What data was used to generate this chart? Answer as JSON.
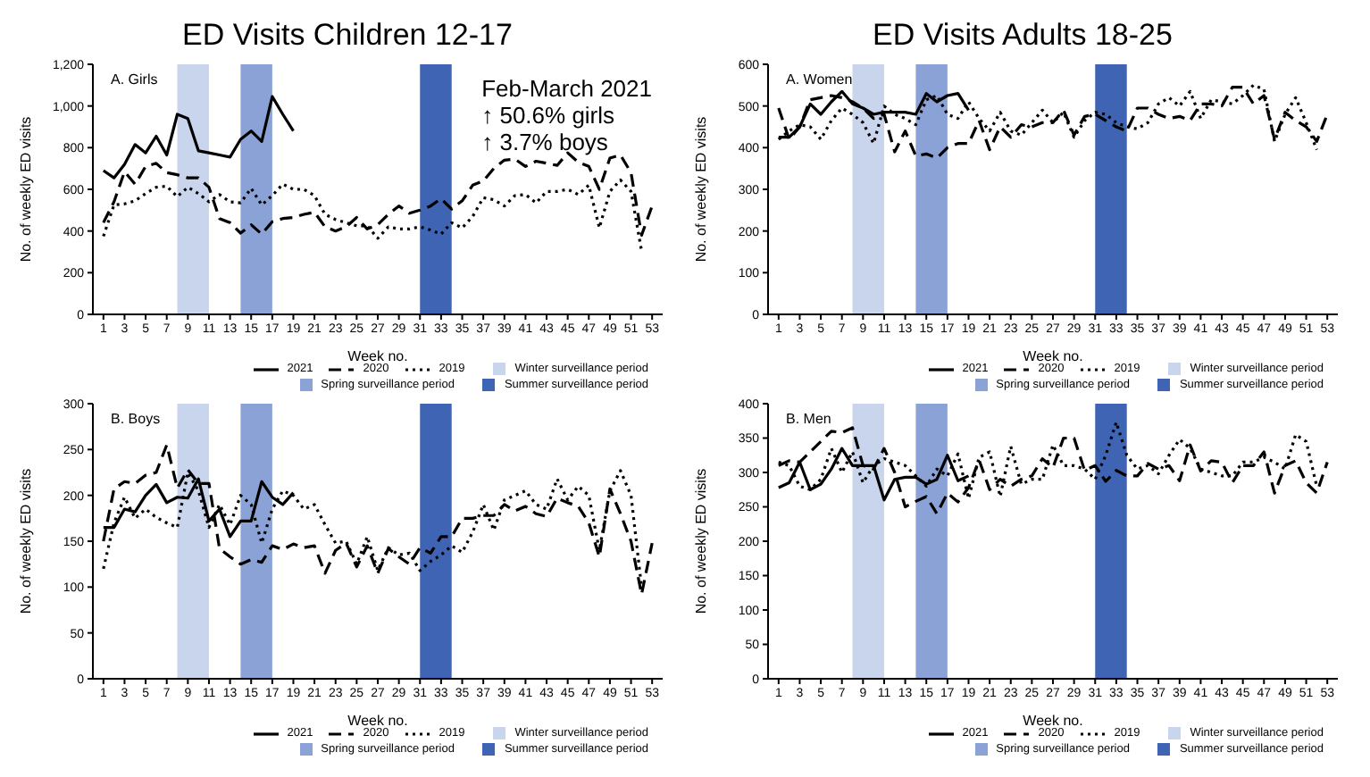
{
  "chart_data": [
    {
      "type": "line",
      "title": "ED Visits Children 12-17",
      "subtitle": "A. Girls",
      "xlabel": "Week no.",
      "ylabel": "No. of weekly ED visits",
      "annotations": [
        "Feb-March 2021\n↑ 50.6% girls\n↑ 3.7% boys"
      ],
      "x": [
        1,
        2,
        3,
        4,
        5,
        6,
        7,
        8,
        9,
        10,
        11,
        12,
        13,
        14,
        15,
        16,
        17,
        18,
        19,
        20,
        21,
        22,
        23,
        24,
        25,
        26,
        27,
        28,
        29,
        30,
        31,
        32,
        33,
        34,
        35,
        36,
        37,
        38,
        39,
        40,
        41,
        42,
        43,
        44,
        45,
        46,
        47,
        48,
        49,
        50,
        51,
        52,
        53
      ],
      "xlim": [
        0,
        54
      ],
      "xticks": [
        1,
        3,
        5,
        7,
        9,
        11,
        13,
        15,
        17,
        19,
        21,
        23,
        25,
        27,
        29,
        31,
        33,
        35,
        37,
        39,
        41,
        43,
        45,
        47,
        49,
        51,
        53
      ],
      "ylim": [
        0,
        1200
      ],
      "yticks": [
        0,
        200,
        400,
        600,
        800,
        {
          "value": 1000,
          "label": "1,000"
        },
        {
          "value": 1200,
          "label": "1,200"
        }
      ],
      "series": [
        {
          "name": "2021",
          "color": "#000000",
          "line_style": "solid",
          "values": [
            690,
            655,
            720,
            815,
            775,
            855,
            765,
            960,
            940,
            785,
            775,
            765,
            755,
            840,
            880,
            830,
            1045,
            960,
            880,
            null,
            null,
            null,
            null,
            null,
            null,
            null,
            null,
            null,
            null,
            null,
            null,
            null,
            null,
            null,
            null,
            null,
            null,
            null,
            null,
            null,
            null,
            null,
            null,
            null,
            null,
            null,
            null,
            null,
            null,
            null,
            null,
            null,
            null
          ]
        },
        {
          "name": "2020",
          "color": "#000000",
          "line_style": "dashed",
          "values": [
            440,
            540,
            685,
            625,
            710,
            725,
            680,
            670,
            655,
            655,
            610,
            460,
            440,
            390,
            430,
            385,
            445,
            460,
            465,
            480,
            490,
            420,
            400,
            420,
            465,
            410,
            430,
            480,
            520,
            485,
            500,
            520,
            555,
            505,
            545,
            620,
            640,
            700,
            740,
            745,
            710,
            735,
            725,
            715,
            775,
            730,
            710,
            600,
            750,
            765,
            680,
            380,
            520
          ]
        },
        {
          "name": "2019",
          "color": "#000000",
          "line_style": "dotted",
          "values": [
            375,
            525,
            530,
            545,
            580,
            610,
            615,
            565,
            610,
            580,
            540,
            575,
            540,
            535,
            605,
            525,
            570,
            625,
            600,
            600,
            570,
            480,
            455,
            440,
            425,
            425,
            365,
            420,
            410,
            410,
            420,
            405,
            385,
            440,
            415,
            470,
            560,
            550,
            520,
            570,
            575,
            535,
            590,
            590,
            600,
            575,
            620,
            415,
            590,
            645,
            590,
            305,
            null
          ]
        }
      ],
      "bands": [
        {
          "axis": "x",
          "from": 8,
          "to": 11,
          "label": "Winter surveillance period",
          "color": "#c9d5ec"
        },
        {
          "axis": "x",
          "from": 14,
          "to": 17,
          "label": "Spring surveillance period",
          "color": "#8aa2d6"
        },
        {
          "axis": "x",
          "from": 31,
          "to": 34,
          "label": "Summer surveillance period",
          "color": "#4064b4"
        }
      ],
      "legend": "bottom right"
    },
    {
      "type": "line",
      "title": "ED Visits Adults 18-25",
      "subtitle": "A. Women",
      "xlabel": "Week no.",
      "ylabel": "No. of weekly ED visits",
      "x": [
        1,
        2,
        3,
        4,
        5,
        6,
        7,
        8,
        9,
        10,
        11,
        12,
        13,
        14,
        15,
        16,
        17,
        18,
        19,
        20,
        21,
        22,
        23,
        24,
        25,
        26,
        27,
        28,
        29,
        30,
        31,
        32,
        33,
        34,
        35,
        36,
        37,
        38,
        39,
        40,
        41,
        42,
        43,
        44,
        45,
        46,
        47,
        48,
        49,
        50,
        51,
        52,
        53
      ],
      "xlim": [
        0,
        54
      ],
      "xticks": [
        1,
        3,
        5,
        7,
        9,
        11,
        13,
        15,
        17,
        19,
        21,
        23,
        25,
        27,
        29,
        31,
        33,
        35,
        37,
        39,
        41,
        43,
        45,
        47,
        49,
        51,
        53
      ],
      "ylim": [
        0,
        600
      ],
      "yticks": [
        0,
        100,
        200,
        300,
        400,
        500,
        600
      ],
      "series": [
        {
          "name": "2021",
          "color": "#000000",
          "line_style": "solid",
          "values": [
            425,
            425,
            450,
            505,
            480,
            510,
            535,
            505,
            495,
            480,
            485,
            485,
            485,
            480,
            530,
            510,
            525,
            530,
            490,
            null,
            null,
            null,
            null,
            null,
            null,
            null,
            null,
            null,
            null,
            null,
            null,
            null,
            null,
            null,
            null,
            null,
            null,
            null,
            null,
            null,
            null,
            null,
            null,
            null,
            null,
            null,
            null,
            null,
            null,
            null,
            null,
            null,
            null
          ]
        },
        {
          "name": "2020",
          "color": "#000000",
          "line_style": "dashed",
          "values": [
            495,
            420,
            450,
            515,
            520,
            525,
            520,
            510,
            495,
            470,
            480,
            390,
            440,
            380,
            385,
            375,
            400,
            410,
            410,
            465,
            395,
            450,
            425,
            455,
            450,
            460,
            460,
            490,
            430,
            475,
            480,
            465,
            450,
            440,
            495,
            495,
            480,
            470,
            475,
            465,
            505,
            505,
            500,
            545,
            545,
            505,
            525,
            420,
            485,
            465,
            450,
            415,
            480
          ]
        },
        {
          "name": "2019",
          "color": "#000000",
          "line_style": "dotted",
          "values": [
            420,
            440,
            455,
            450,
            420,
            465,
            495,
            480,
            460,
            410,
            500,
            480,
            470,
            455,
            515,
            525,
            480,
            470,
            510,
            470,
            440,
            485,
            440,
            430,
            460,
            490,
            460,
            485,
            425,
            465,
            485,
            480,
            460,
            450,
            445,
            460,
            505,
            520,
            500,
            535,
            470,
            515,
            510,
            505,
            525,
            550,
            540,
            415,
            480,
            520,
            460,
            395,
            null
          ]
        }
      ],
      "bands": [
        {
          "axis": "x",
          "from": 8,
          "to": 11,
          "label": "Winter surveillance period",
          "color": "#c9d5ec"
        },
        {
          "axis": "x",
          "from": 14,
          "to": 17,
          "label": "Spring surveillance period",
          "color": "#8aa2d6"
        },
        {
          "axis": "x",
          "from": 31,
          "to": 34,
          "label": "Summer surveillance period",
          "color": "#4064b4"
        }
      ],
      "legend": "bottom right"
    },
    {
      "type": "line",
      "subtitle": "B. Boys",
      "xlabel": "Week no.",
      "ylabel": "No. of weekly ED visits",
      "x": [
        1,
        2,
        3,
        4,
        5,
        6,
        7,
        8,
        9,
        10,
        11,
        12,
        13,
        14,
        15,
        16,
        17,
        18,
        19,
        20,
        21,
        22,
        23,
        24,
        25,
        26,
        27,
        28,
        29,
        30,
        31,
        32,
        33,
        34,
        35,
        36,
        37,
        38,
        39,
        40,
        41,
        42,
        43,
        44,
        45,
        46,
        47,
        48,
        49,
        50,
        51,
        52,
        53
      ],
      "xlim": [
        0,
        54
      ],
      "xticks": [
        1,
        3,
        5,
        7,
        9,
        11,
        13,
        15,
        17,
        19,
        21,
        23,
        25,
        27,
        29,
        31,
        33,
        35,
        37,
        39,
        41,
        43,
        45,
        47,
        49,
        51,
        53
      ],
      "ylim": [
        0,
        300
      ],
      "yticks": [
        0,
        50,
        100,
        150,
        200,
        250,
        300
      ],
      "series": [
        {
          "name": "2021",
          "color": "#000000",
          "line_style": "solid",
          "values": [
            165,
            165,
            185,
            182,
            200,
            212,
            192,
            198,
            197,
            218,
            172,
            185,
            155,
            172,
            172,
            215,
            198,
            190,
            203,
            null,
            null,
            null,
            null,
            null,
            null,
            null,
            null,
            null,
            null,
            null,
            null,
            null,
            null,
            null,
            null,
            null,
            null,
            null,
            null,
            null,
            null,
            null,
            null,
            null,
            null,
            null,
            null,
            null,
            null,
            null,
            null,
            null,
            null
          ]
        },
        {
          "name": "2020",
          "color": "#000000",
          "line_style": "dashed",
          "values": [
            150,
            207,
            215,
            213,
            222,
            225,
            255,
            208,
            228,
            213,
            213,
            142,
            133,
            125,
            130,
            127,
            145,
            141,
            147,
            143,
            145,
            115,
            140,
            148,
            122,
            145,
            115,
            142,
            133,
            125,
            143,
            137,
            155,
            155,
            175,
            175,
            178,
            178,
            190,
            183,
            188,
            180,
            177,
            197,
            192,
            188,
            170,
            133,
            207,
            180,
            150,
            92,
            148
          ]
        },
        {
          "name": "2019",
          "color": "#000000",
          "line_style": "dotted",
          "values": [
            120,
            170,
            198,
            175,
            185,
            176,
            170,
            165,
            225,
            205,
            165,
            190,
            168,
            200,
            190,
            148,
            185,
            205,
            200,
            185,
            190,
            168,
            148,
            150,
            125,
            155,
            118,
            143,
            135,
            137,
            118,
            128,
            135,
            145,
            138,
            160,
            190,
            162,
            195,
            200,
            205,
            190,
            185,
            218,
            195,
            210,
            200,
            140,
            205,
            227,
            200,
            100,
            null
          ]
        }
      ],
      "bands": [
        {
          "axis": "x",
          "from": 8,
          "to": 11,
          "label": "Winter surveillance period",
          "color": "#c9d5ec"
        },
        {
          "axis": "x",
          "from": 14,
          "to": 17,
          "label": "Spring surveillance period",
          "color": "#8aa2d6"
        },
        {
          "axis": "x",
          "from": 31,
          "to": 34,
          "label": "Summer surveillance period",
          "color": "#4064b4"
        }
      ],
      "legend": "bottom right"
    },
    {
      "type": "line",
      "subtitle": "B. Men",
      "xlabel": "Week no.",
      "ylabel": "No. of weekly ED visits",
      "x": [
        1,
        2,
        3,
        4,
        5,
        6,
        7,
        8,
        9,
        10,
        11,
        12,
        13,
        14,
        15,
        16,
        17,
        18,
        19,
        20,
        21,
        22,
        23,
        24,
        25,
        26,
        27,
        28,
        29,
        30,
        31,
        32,
        33,
        34,
        35,
        36,
        37,
        38,
        39,
        40,
        41,
        42,
        43,
        44,
        45,
        46,
        47,
        48,
        49,
        50,
        51,
        52,
        53
      ],
      "xlim": [
        0,
        54
      ],
      "xticks": [
        1,
        3,
        5,
        7,
        9,
        11,
        13,
        15,
        17,
        19,
        21,
        23,
        25,
        27,
        29,
        31,
        33,
        35,
        37,
        39,
        41,
        43,
        45,
        47,
        49,
        51,
        53
      ],
      "ylim": [
        0,
        400
      ],
      "yticks": [
        0,
        50,
        100,
        150,
        200,
        250,
        300,
        350,
        400
      ],
      "series": [
        {
          "name": "2021",
          "color": "#000000",
          "line_style": "solid",
          "values": [
            278,
            285,
            315,
            275,
            283,
            305,
            335,
            310,
            310,
            310,
            260,
            290,
            293,
            293,
            283,
            290,
            325,
            288,
            295,
            null,
            null,
            null,
            null,
            null,
            null,
            null,
            null,
            null,
            null,
            null,
            null,
            null,
            null,
            null,
            null,
            null,
            null,
            null,
            null,
            null,
            null,
            null,
            null,
            null,
            null,
            null,
            null,
            null,
            null,
            null,
            null,
            null,
            null
          ]
        },
        {
          "name": "2020",
          "color": "#000000",
          "line_style": "dashed",
          "values": [
            310,
            317,
            315,
            330,
            345,
            360,
            358,
            365,
            310,
            305,
            335,
            300,
            250,
            258,
            265,
            240,
            270,
            257,
            278,
            318,
            275,
            290,
            280,
            290,
            295,
            320,
            307,
            350,
            350,
            303,
            310,
            287,
            303,
            295,
            295,
            313,
            305,
            310,
            288,
            340,
            302,
            317,
            315,
            285,
            310,
            310,
            330,
            270,
            310,
            317,
            285,
            270,
            315
          ]
        },
        {
          "name": "2019",
          "color": "#000000",
          "line_style": "dotted",
          "values": [
            315,
            310,
            280,
            275,
            290,
            335,
            300,
            330,
            285,
            310,
            320,
            315,
            310,
            295,
            280,
            305,
            295,
            327,
            262,
            322,
            330,
            265,
            338,
            283,
            290,
            290,
            340,
            310,
            310,
            305,
            290,
            325,
            373,
            325,
            305,
            310,
            298,
            325,
            348,
            335,
            305,
            300,
            295,
            295,
            315,
            315,
            322,
            315,
            305,
            355,
            345,
            280,
            null
          ]
        }
      ],
      "bands": [
        {
          "axis": "x",
          "from": 8,
          "to": 11,
          "label": "Winter surveillance period",
          "color": "#c9d5ec"
        },
        {
          "axis": "x",
          "from": 14,
          "to": 17,
          "label": "Spring surveillance period",
          "color": "#8aa2d6"
        },
        {
          "axis": "x",
          "from": 31,
          "to": 34,
          "label": "Summer surveillance period",
          "color": "#4064b4"
        }
      ],
      "legend": "bottom right"
    }
  ]
}
